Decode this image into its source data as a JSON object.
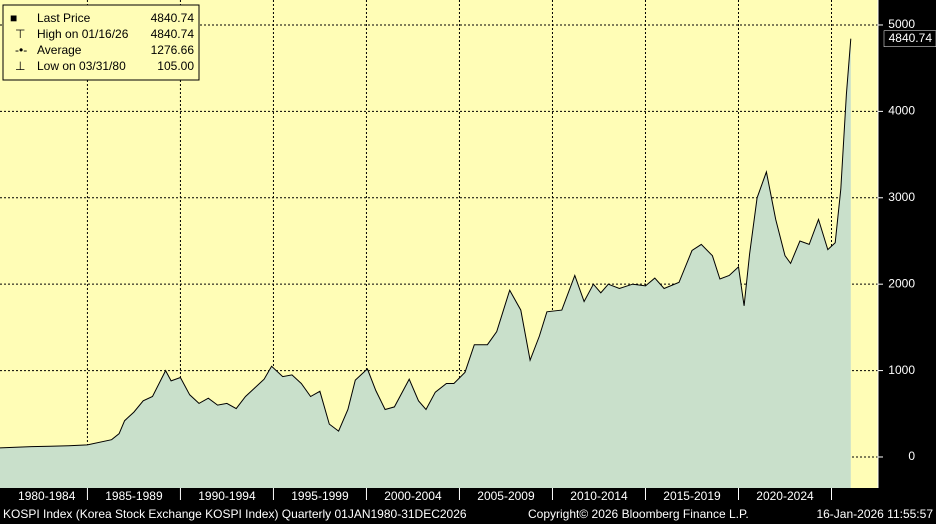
{
  "chart_data": {
    "type": "area",
    "line_color": "#000000",
    "fill_color": "#c9e0cb",
    "background": "#fffdb6",
    "grid": true,
    "x": [
      1980.3,
      1982,
      1983,
      1984,
      1985,
      1986.3,
      1986.7,
      1987.0,
      1987.5,
      1988.0,
      1988.5,
      1989.2,
      1989.5,
      1990.0,
      1990.5,
      1991.0,
      1991.5,
      1992.0,
      1992.5,
      1993.0,
      1993.5,
      1994.0,
      1994.5,
      1994.9,
      1995.5,
      1996.0,
      1996.5,
      1997.0,
      1997.5,
      1998.0,
      1998.5,
      1999.0,
      1999.4,
      2000.05,
      2000.5,
      2001.0,
      2001.5,
      2002.3,
      2002.8,
      2003.2,
      2003.7,
      2004.3,
      2004.7,
      2005.3,
      2005.8,
      2006.5,
      2007.0,
      2007.7,
      2008.3,
      2008.8,
      2009.3,
      2009.7,
      2010.5,
      2011.2,
      2011.7,
      2012.2,
      2012.6,
      2013.0,
      2013.6,
      2014.3,
      2015.0,
      2015.5,
      2016.0,
      2016.8,
      2017.5,
      2018.0,
      2018.6,
      2019.0,
      2019.5,
      2020.0,
      2020.3,
      2020.6,
      2021.0,
      2021.5,
      2022.0,
      2022.5,
      2022.8,
      2023.3,
      2023.8,
      2024.3,
      2024.8,
      2025.2,
      2025.5,
      2025.8,
      2026.04
    ],
    "values": [
      105,
      120,
      125,
      130,
      140,
      200,
      270,
      420,
      520,
      650,
      700,
      1000,
      880,
      920,
      720,
      620,
      680,
      600,
      620,
      560,
      700,
      800,
      900,
      1050,
      930,
      950,
      850,
      700,
      760,
      380,
      300,
      550,
      890,
      1020,
      770,
      550,
      580,
      900,
      650,
      550,
      750,
      850,
      850,
      980,
      1300,
      1300,
      1450,
      1930,
      1700,
      1120,
      1400,
      1680,
      1700,
      2100,
      1800,
      2000,
      1900,
      2000,
      1950,
      2000,
      1980,
      2070,
      1950,
      2020,
      2390,
      2460,
      2330,
      2060,
      2100,
      2200,
      1750,
      2350,
      3000,
      3300,
      2750,
      2330,
      2240,
      2500,
      2460,
      2750,
      2400,
      2480,
      3100,
      4200,
      4840.74
    ],
    "xlim": [
      1980.3,
      2027.5
    ],
    "ylim": [
      -359,
      5289
    ],
    "yticks": [
      0,
      1000,
      2000,
      3000,
      4000,
      5000
    ],
    "x_bands": [
      {
        "label": "1980-1984",
        "from": 1980,
        "to": 1985
      },
      {
        "label": "1985-1989",
        "from": 1985,
        "to": 1990
      },
      {
        "label": "1990-1994",
        "from": 1990,
        "to": 1995
      },
      {
        "label": "1995-1999",
        "from": 1995,
        "to": 2000
      },
      {
        "label": "2000-2004",
        "from": 2000,
        "to": 2005
      },
      {
        "label": "2005-2009",
        "from": 2005,
        "to": 2010
      },
      {
        "label": "2010-2014",
        "from": 2010,
        "to": 2015
      },
      {
        "label": "2015-2019",
        "from": 2015,
        "to": 2020
      },
      {
        "label": "2020-2024",
        "from": 2020,
        "to": 2025
      }
    ],
    "legend": [
      {
        "name": "Last Price",
        "value": 4840.74
      },
      {
        "name": "High on 01/16/26",
        "value": 4840.74
      },
      {
        "name": "Average",
        "value": 1276.66
      },
      {
        "name": "Low on 03/31/80",
        "value": {
          "value": 105,
          "label": "105.00"
        }
      }
    ],
    "footer": {
      "description": "KOSPI Index (Korea Stock Exchange KOSPI Index) Quarterly 01JAN1980-31DEC2026",
      "copyright": "Copyright© 2026 Bloomberg Finance L.P.",
      "timestamp": "16-Jan-2026 11:55:57"
    }
  }
}
